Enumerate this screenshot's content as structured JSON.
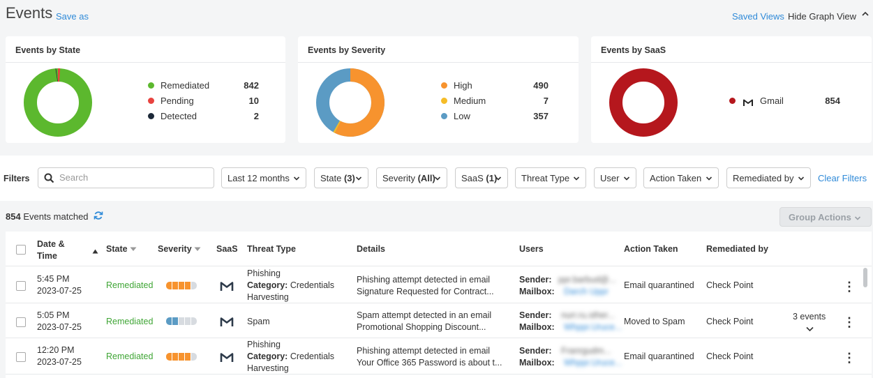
{
  "header": {
    "title": "Events",
    "save_as": "Save as",
    "saved_views": "Saved Views",
    "hide_graph": "Hide Graph View"
  },
  "cards": {
    "state": {
      "title": "Events by State",
      "items": [
        {
          "label": "Remediated",
          "value": "842",
          "color": "#5cb82e"
        },
        {
          "label": "Pending",
          "value": "10",
          "color": "#e8433f"
        },
        {
          "label": "Detected",
          "value": "2",
          "color": "#1c2838"
        }
      ]
    },
    "severity": {
      "title": "Events by Severity",
      "items": [
        {
          "label": "High",
          "value": "490",
          "color": "#f7932e"
        },
        {
          "label": "Medium",
          "value": "7",
          "color": "#f5bc27"
        },
        {
          "label": "Low",
          "value": "357",
          "color": "#5b9bc4"
        }
      ]
    },
    "saas": {
      "title": "Events by SaaS",
      "items": [
        {
          "label": "Gmail",
          "value": "854",
          "color": "#b5171d"
        }
      ]
    }
  },
  "filters": {
    "label": "Filters",
    "search_placeholder": "Search",
    "dropdowns": [
      {
        "pre": "Last 12 months",
        "bold": ""
      },
      {
        "pre": "State ",
        "bold": "(3)"
      },
      {
        "pre": "Severity ",
        "bold": "(All)"
      },
      {
        "pre": "SaaS ",
        "bold": "(1)"
      },
      {
        "pre": "Threat Type",
        "bold": ""
      },
      {
        "pre": "User",
        "bold": ""
      },
      {
        "pre": "Action Taken",
        "bold": ""
      },
      {
        "pre": "Remediated by",
        "bold": ""
      }
    ],
    "clear": "Clear Filters"
  },
  "results": {
    "count": "854",
    "matched_text": " Events matched",
    "group_actions": "Group Actions"
  },
  "table": {
    "columns": {
      "date": "Date &",
      "date2": "Time",
      "state": "State",
      "severity": "Severity",
      "saas": "SaaS",
      "threat": "Threat Type",
      "details": "Details",
      "users": "Users",
      "action": "Action Taken",
      "remediated": "Remediated by"
    },
    "rows": [
      {
        "time": "5:45 PM",
        "date": "2023-07-25",
        "state": "Remediated",
        "threat1": "Phishing",
        "threat_cat_label": "Category:",
        "threat_cat": " Credentials",
        "threat3": "Harvesting",
        "detail": "Phishing attempt detected in email",
        "detail_link": "Signature Requested for Contract...",
        "sender_label": "Sender:",
        "mailbox_label": "Mailbox:",
        "sender": "ppr.barbud@...",
        "mailbox": "Darch Uppr",
        "action": "Email quarantined",
        "remediated": "Check Point",
        "extra": ""
      },
      {
        "time": "5:05 PM",
        "date": "2023-07-25",
        "state": "Remediated",
        "threat1": "Spam",
        "threat_cat_label": "",
        "threat_cat": "",
        "threat3": "",
        "detail": "Spam attempt detected in an email",
        "detail_link": "Promotional Shopping Discount...",
        "sender_label": "Sender:",
        "mailbox_label": "Mailbox:",
        "sender": "nurr.ru.sther...",
        "mailbox": "Whppr.Uruce...",
        "action": "Moved to Spam",
        "remediated": "Check Point",
        "extra": "3 events"
      },
      {
        "time": "12:20 PM",
        "date": "2023-07-25",
        "state": "Remediated",
        "threat1": "Phishing",
        "threat_cat_label": "Category:",
        "threat_cat": " Credentials",
        "threat3": "Harvesting",
        "detail": "Phishing attempt detected in email",
        "detail_link": "Your Office 365 Password is about t...",
        "sender_label": "Sender:",
        "mailbox_label": "Mailbox:",
        "sender": "Franrgudm...",
        "mailbox": "Whppr.Uruce...",
        "action": "Email quarantined",
        "remediated": "Check Point",
        "extra": ""
      }
    ]
  }
}
